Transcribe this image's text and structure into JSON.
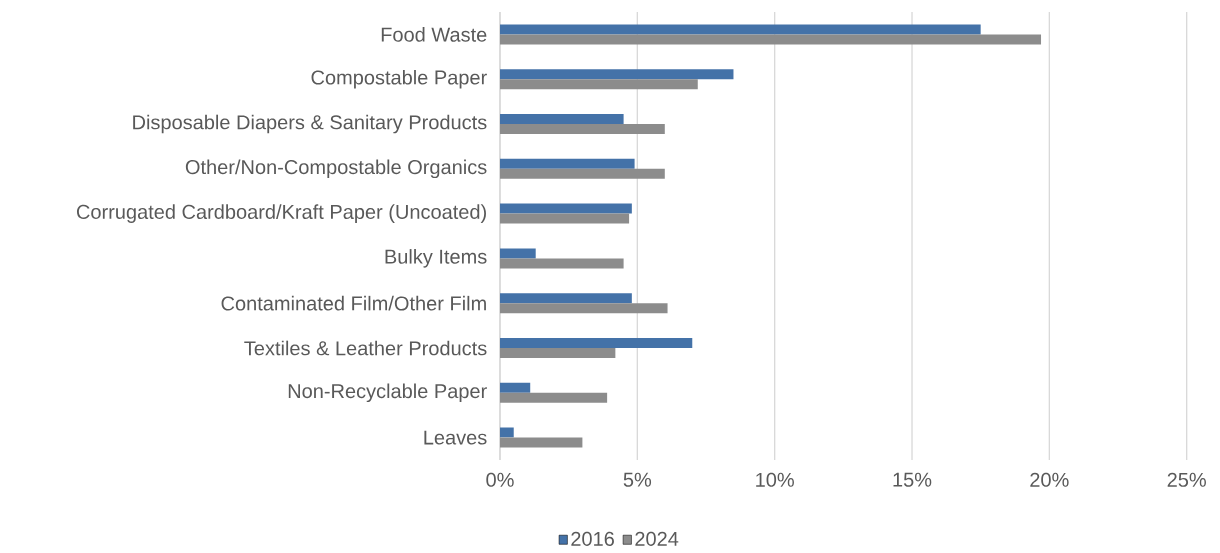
{
  "chart_data": {
    "type": "bar",
    "orientation": "horizontal",
    "categories": [
      "Food Waste",
      "Compostable Paper",
      "Disposable Diapers & Sanitary Products",
      "Other/Non-Compostable Organics",
      "Corrugated Cardboard/Kraft Paper (Uncoated)",
      "Bulky Items",
      "Contaminated Film/Other Film",
      "Textiles & Leather Products",
      "Non-Recyclable Paper",
      "Leaves"
    ],
    "series": [
      {
        "name": "2016",
        "color": "#4472a8",
        "values": [
          17.5,
          8.5,
          4.5,
          4.9,
          4.8,
          1.3,
          4.8,
          7.0,
          1.1,
          0.5
        ]
      },
      {
        "name": "2024",
        "color": "#8c8c8c",
        "values": [
          19.7,
          7.2,
          6.0,
          6.0,
          4.7,
          4.5,
          6.1,
          4.2,
          3.9,
          3.0
        ]
      }
    ],
    "xlim": [
      0,
      25
    ],
    "xticks": [
      {
        "value": 0,
        "label": "0%"
      },
      {
        "value": 5,
        "label": "5%"
      },
      {
        "value": 10,
        "label": "10%"
      },
      {
        "value": 15,
        "label": "15%"
      },
      {
        "value": 20,
        "label": "20%"
      },
      {
        "value": 25,
        "label": "25%"
      }
    ],
    "grid": "x",
    "legend": "bottom"
  }
}
